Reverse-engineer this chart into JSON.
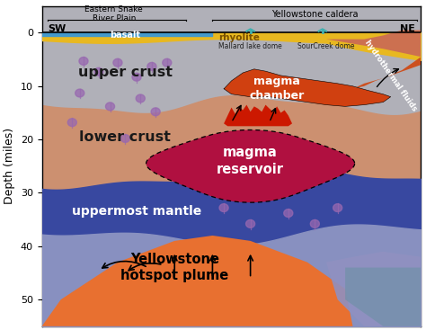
{
  "ylim": [
    55,
    -5
  ],
  "xlim": [
    0,
    10
  ],
  "ylabel": "Depth (miles)",
  "yticks": [
    0,
    10,
    20,
    30,
    40,
    50
  ],
  "figsize": [
    4.74,
    3.67
  ],
  "dpi": 100,
  "colors": {
    "upper_crust": "#b0b0b8",
    "lower_crust": "#cc9070",
    "mantle": "#3848a0",
    "mantle_lower": "#5060a8",
    "below_mantle": "#8890c0",
    "basalt": "#4499cc",
    "rhyolite": "#e8b820",
    "magma_reservoir": "#b01040",
    "magma_chamber": "#d04010",
    "hydrothermal": "#cc5020",
    "plume": "#e87030",
    "plume_right": "#9090c0",
    "rain": "#9868b0",
    "background": "#ffffff",
    "ne_surface": "#cc7050"
  },
  "labels": {
    "upper_crust": "upper crust",
    "lower_crust": "lower crust",
    "mantle": "uppermost mantle",
    "reservoir_line1": "magma",
    "reservoir_line2": "reservoir",
    "chamber_line1": "magma",
    "chamber_line2": "chamber",
    "plume_line1": "Yellowstone",
    "plume_line2": "hotspot plume",
    "hydrothermal": "hydrothermal fluids",
    "basalt": "basalt",
    "rhyolite": "rhyolite",
    "sw": "SW",
    "ne": "NE",
    "eastern_snake_line1": "Eastern Snake",
    "eastern_snake_line2": "River Plain",
    "yellowstone_caldera": "Yellowstone caldera",
    "mallard": "Mallard lake dome",
    "sourcreek": "SourCreek dome"
  }
}
